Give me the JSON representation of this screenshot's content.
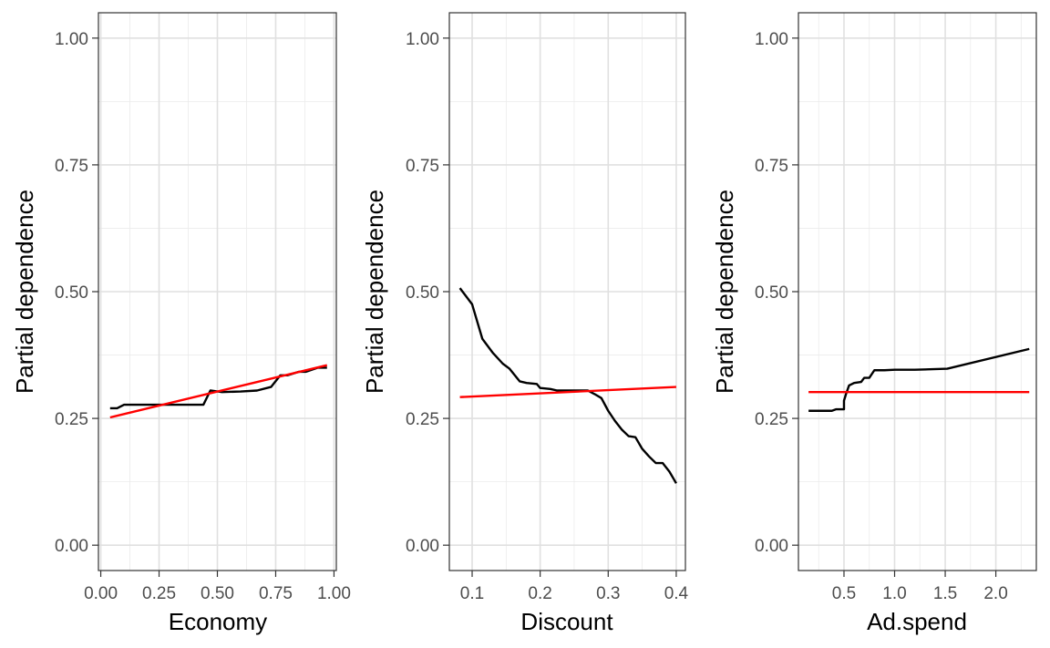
{
  "chart_data": [
    {
      "type": "line",
      "xlabel": "Economy",
      "ylabel": "Partial dependence",
      "xlim": [
        -0.01,
        1.01
      ],
      "ylim": [
        -0.05,
        1.05
      ],
      "xticks": [
        0.0,
        0.25,
        0.5,
        0.75,
        1.0
      ],
      "xtick_labels": [
        "0.00",
        "0.25",
        "0.50",
        "0.75",
        "1.00"
      ],
      "yticks": [
        0.0,
        0.25,
        0.5,
        0.75,
        1.0
      ],
      "ytick_labels": [
        "0.00",
        "0.25",
        "0.50",
        "0.75",
        "1.00"
      ],
      "grid": true,
      "series": [
        {
          "color": "#000000",
          "x": [
            0.04,
            0.07,
            0.1,
            0.2,
            0.3,
            0.44,
            0.47,
            0.52,
            0.6,
            0.67,
            0.73,
            0.77,
            0.8,
            0.85,
            0.88,
            0.93,
            0.97
          ],
          "y": [
            0.27,
            0.27,
            0.277,
            0.277,
            0.277,
            0.277,
            0.305,
            0.302,
            0.303,
            0.305,
            0.312,
            0.335,
            0.335,
            0.342,
            0.342,
            0.35,
            0.35
          ]
        },
        {
          "color": "#ff0000",
          "x": [
            0.04,
            0.97
          ],
          "y": [
            0.252,
            0.355
          ]
        }
      ]
    },
    {
      "type": "line",
      "xlabel": "Discount",
      "ylabel": "Partial dependence",
      "xlim": [
        0.0665,
        0.4135
      ],
      "ylim": [
        -0.05,
        1.05
      ],
      "xticks": [
        0.1,
        0.2,
        0.3,
        0.4
      ],
      "xtick_labels": [
        "0.1",
        "0.2",
        "0.3",
        "0.4"
      ],
      "yticks": [
        0.0,
        0.25,
        0.5,
        0.75,
        1.0
      ],
      "ytick_labels": [
        "0.00",
        "0.25",
        "0.50",
        "0.75",
        "1.00"
      ],
      "grid": true,
      "series": [
        {
          "color": "#000000",
          "x": [
            0.082,
            0.1,
            0.115,
            0.13,
            0.145,
            0.155,
            0.17,
            0.18,
            0.195,
            0.2,
            0.215,
            0.225,
            0.24,
            0.25,
            0.27,
            0.28,
            0.29,
            0.3,
            0.31,
            0.32,
            0.33,
            0.34,
            0.35,
            0.36,
            0.37,
            0.38,
            0.39,
            0.4
          ],
          "y": [
            0.507,
            0.475,
            0.407,
            0.38,
            0.358,
            0.348,
            0.323,
            0.32,
            0.318,
            0.31,
            0.308,
            0.305,
            0.305,
            0.305,
            0.305,
            0.298,
            0.29,
            0.265,
            0.245,
            0.228,
            0.215,
            0.213,
            0.19,
            0.175,
            0.162,
            0.162,
            0.145,
            0.122
          ]
        },
        {
          "color": "#ff0000",
          "x": [
            0.082,
            0.4
          ],
          "y": [
            0.292,
            0.312
          ]
        }
      ]
    },
    {
      "type": "line",
      "xlabel": "Ad.spend",
      "ylabel": "Partial dependence",
      "xlim": [
        0.05,
        2.4
      ],
      "ylim": [
        -0.05,
        1.05
      ],
      "xticks": [
        0.5,
        1.0,
        1.5,
        2.0
      ],
      "xtick_labels": [
        "0.5",
        "1.0",
        "1.5",
        "2.0"
      ],
      "yticks": [
        0.0,
        0.25,
        0.5,
        0.75,
        1.0
      ],
      "ytick_labels": [
        "0.00",
        "0.25",
        "0.50",
        "0.75",
        "1.00"
      ],
      "grid": true,
      "series": [
        {
          "color": "#000000",
          "x": [
            0.15,
            0.3,
            0.38,
            0.42,
            0.5,
            0.5,
            0.52,
            0.55,
            0.6,
            0.67,
            0.7,
            0.75,
            0.8,
            0.9,
            1.0,
            1.2,
            1.52,
            2.33
          ],
          "y": [
            0.265,
            0.265,
            0.265,
            0.268,
            0.268,
            0.285,
            0.298,
            0.315,
            0.32,
            0.322,
            0.33,
            0.33,
            0.345,
            0.345,
            0.346,
            0.346,
            0.348,
            0.387
          ]
        },
        {
          "color": "#ff0000",
          "x": [
            0.15,
            2.33
          ],
          "y": [
            0.302,
            0.302
          ]
        }
      ]
    }
  ]
}
